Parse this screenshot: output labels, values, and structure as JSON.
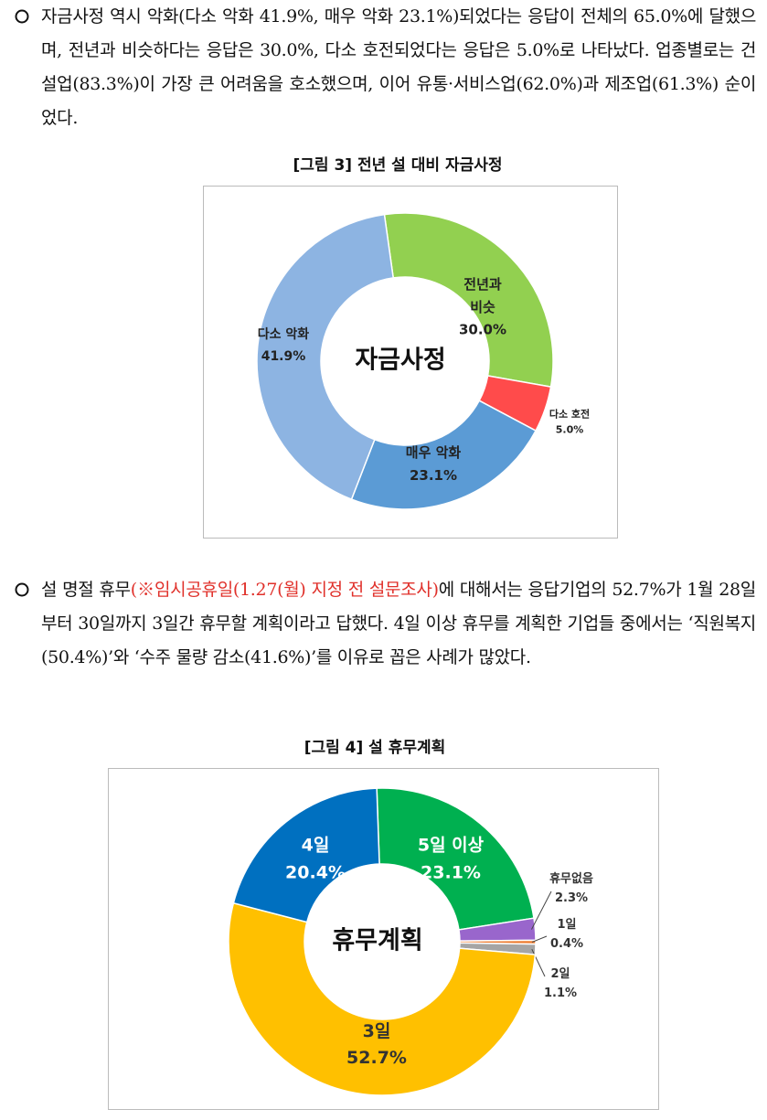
{
  "paragraphs": [
    {
      "segments": [
        "자금사정 역시 악화(다소 악화 41.9%, 매우 악화 23.1%)되었다는 응답이 전체의 65.0%에 달했으며, 전년과 비슷하다는 응답은 30.0%, 다소 호전되었다는 응답은 5.0%로 나타났다. 업종별로는 건설업(83.3%)이 가장 큰 어려움을 호소했으며, 이어 유통·서비스업(62.0%)과 제조업(61.3%) 순이었다."
      ]
    },
    {
      "segments": [
        "설 명절 휴무",
        "(※임시공휴일(1.27(월) 지정 전 설문조사)",
        "에 대해서는 응답기업의 52.7%가 1월 28일부터 30일까지 3일간 휴무할 계획이라고 답했다. 4일 이상 휴무를 계획한 기업들 중에서는 ‘직원복지(50.4%)’와 ‘수주 물량 감소(41.6%)’를 이유로 꼽은 사례가 많았다."
      ]
    }
  ],
  "chart_data": [
    {
      "type": "pie",
      "donut": true,
      "title": "[그림 3] 전년 설 대비 자금사정",
      "center_label": "자금사정",
      "categories": [
        "전년과\n비슷",
        "다소 호전",
        "매우 악화",
        "다소 악화"
      ],
      "values": [
        30.0,
        5.0,
        23.1,
        41.9
      ],
      "value_labels": [
        "30.0%",
        "5.0%",
        "23.1%",
        "41.9%"
      ],
      "colors": [
        "#92d050",
        "#ff4b4b",
        "#5b9bd5",
        "#8db4e2"
      ]
    },
    {
      "type": "pie",
      "donut": true,
      "title": "[그림 4] 설 휴무계획",
      "center_label": "휴무계획",
      "categories": [
        "5일 이상",
        "휴무없음",
        "1일",
        "2일",
        "3일",
        "4일"
      ],
      "values": [
        23.1,
        2.3,
        0.4,
        1.1,
        52.7,
        20.4
      ],
      "value_labels": [
        "23.1%",
        "2.3%",
        "0.4%",
        "1.1%",
        "52.7%",
        "20.4%"
      ],
      "colors": [
        "#00b050",
        "#9966cc",
        "#ed7d31",
        "#a5a5a5",
        "#ffc000",
        "#0070c0"
      ]
    }
  ]
}
